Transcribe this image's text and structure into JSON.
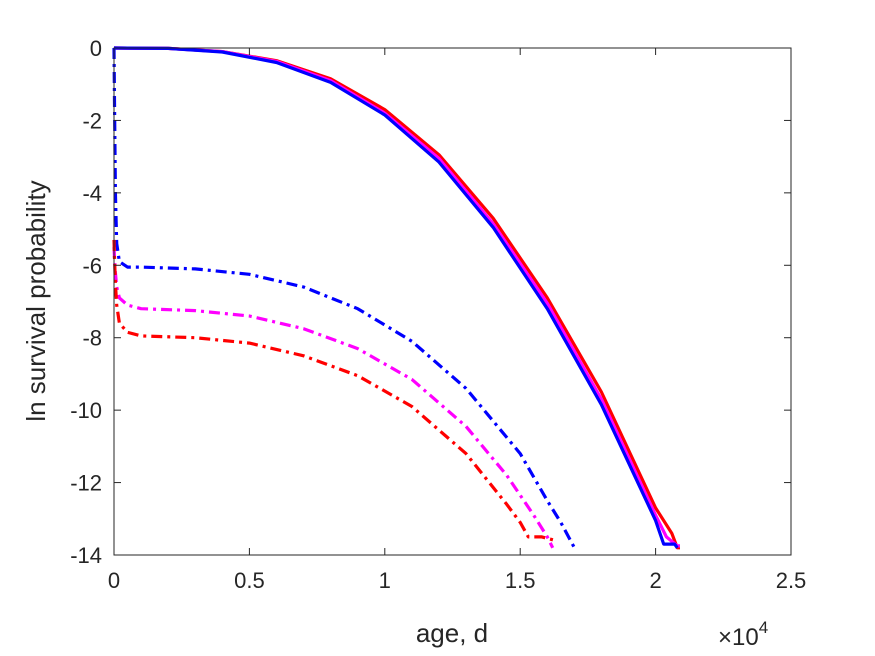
{
  "chart_data": {
    "type": "line",
    "xlabel": "age, d",
    "ylabel": "ln survival probability",
    "x_multiplier": {
      "base": "×10",
      "exponent": "4"
    },
    "xlim": [
      0,
      2.5
    ],
    "ylim": [
      -14,
      0
    ],
    "xticks": [
      0,
      0.5,
      1,
      1.5,
      2,
      2.5
    ],
    "xtick_labels": [
      "0",
      "0.5",
      "1",
      "1.5",
      "2",
      "2.5"
    ],
    "yticks": [
      0,
      -2,
      -4,
      -6,
      -8,
      -10,
      -12,
      -14
    ],
    "ytick_labels": [
      "0",
      "-2",
      "-4",
      "-6",
      "-8",
      "-10",
      "-12",
      "-14"
    ],
    "grid": false,
    "legend": "none",
    "series": [
      {
        "color": "#ff0000",
        "style": "solid",
        "x": [
          0,
          0.2,
          0.4,
          0.6,
          0.8,
          1.0,
          1.2,
          1.4,
          1.6,
          1.8,
          2.0,
          2.06,
          2.08,
          2.09
        ],
        "y": [
          0,
          -0.01,
          -0.1,
          -0.35,
          -0.85,
          -1.7,
          -2.95,
          -4.7,
          -6.9,
          -9.5,
          -12.7,
          -13.4,
          -13.8,
          -13.8
        ]
      },
      {
        "color": "#ff00ff",
        "style": "solid",
        "x": [
          0,
          0.2,
          0.4,
          0.6,
          0.8,
          1.0,
          1.2,
          1.4,
          1.6,
          1.8,
          2.0,
          2.04,
          2.08,
          2.09
        ],
        "y": [
          0,
          -0.01,
          -0.1,
          -0.37,
          -0.9,
          -1.8,
          -3.05,
          -4.85,
          -7.05,
          -9.7,
          -12.9,
          -13.5,
          -13.75,
          -13.75
        ]
      },
      {
        "color": "#0000ff",
        "style": "solid",
        "x": [
          0,
          0.2,
          0.4,
          0.6,
          0.8,
          1.0,
          1.2,
          1.4,
          1.6,
          1.8,
          2.0,
          2.03,
          2.07,
          2.08
        ],
        "y": [
          0,
          -0.01,
          -0.11,
          -0.4,
          -0.95,
          -1.85,
          -3.15,
          -4.95,
          -7.2,
          -9.85,
          -13.05,
          -13.7,
          -13.7,
          -13.8
        ]
      },
      {
        "color": "#0000ff",
        "style": "dashdot",
        "x": [
          0,
          0.002,
          0.005,
          0.01,
          0.02,
          0.05,
          0.1,
          0.3,
          0.5,
          0.7,
          0.9,
          1.1,
          1.3,
          1.5,
          1.6,
          1.65,
          1.7
        ],
        "y": [
          0,
          -1.5,
          -4.0,
          -5.4,
          -5.9,
          -6.05,
          -6.05,
          -6.1,
          -6.25,
          -6.6,
          -7.2,
          -8.1,
          -9.4,
          -11.2,
          -12.5,
          -13.1,
          -13.8
        ]
      },
      {
        "color": "#ff00ff",
        "style": "dashdot",
        "x": [
          0,
          0.002,
          0.005,
          0.01,
          0.02,
          0.05,
          0.1,
          0.3,
          0.5,
          0.7,
          0.9,
          1.1,
          1.3,
          1.45,
          1.55,
          1.6,
          1.62
        ],
        "y": [
          -5.5,
          -5.8,
          -6.2,
          -6.6,
          -6.9,
          -7.1,
          -7.2,
          -7.25,
          -7.4,
          -7.75,
          -8.3,
          -9.15,
          -10.45,
          -11.8,
          -12.9,
          -13.5,
          -13.8
        ]
      },
      {
        "color": "#ff0000",
        "style": "dashdot",
        "x": [
          0,
          0.002,
          0.005,
          0.01,
          0.02,
          0.05,
          0.1,
          0.3,
          0.5,
          0.7,
          0.9,
          1.1,
          1.3,
          1.45,
          1.5,
          1.53,
          1.58,
          1.63
        ],
        "y": [
          -5.3,
          -5.8,
          -6.5,
          -7.1,
          -7.6,
          -7.85,
          -7.95,
          -8.0,
          -8.15,
          -8.5,
          -9.05,
          -9.9,
          -11.2,
          -12.6,
          -13.1,
          -13.5,
          -13.5,
          -13.6
        ]
      }
    ]
  }
}
